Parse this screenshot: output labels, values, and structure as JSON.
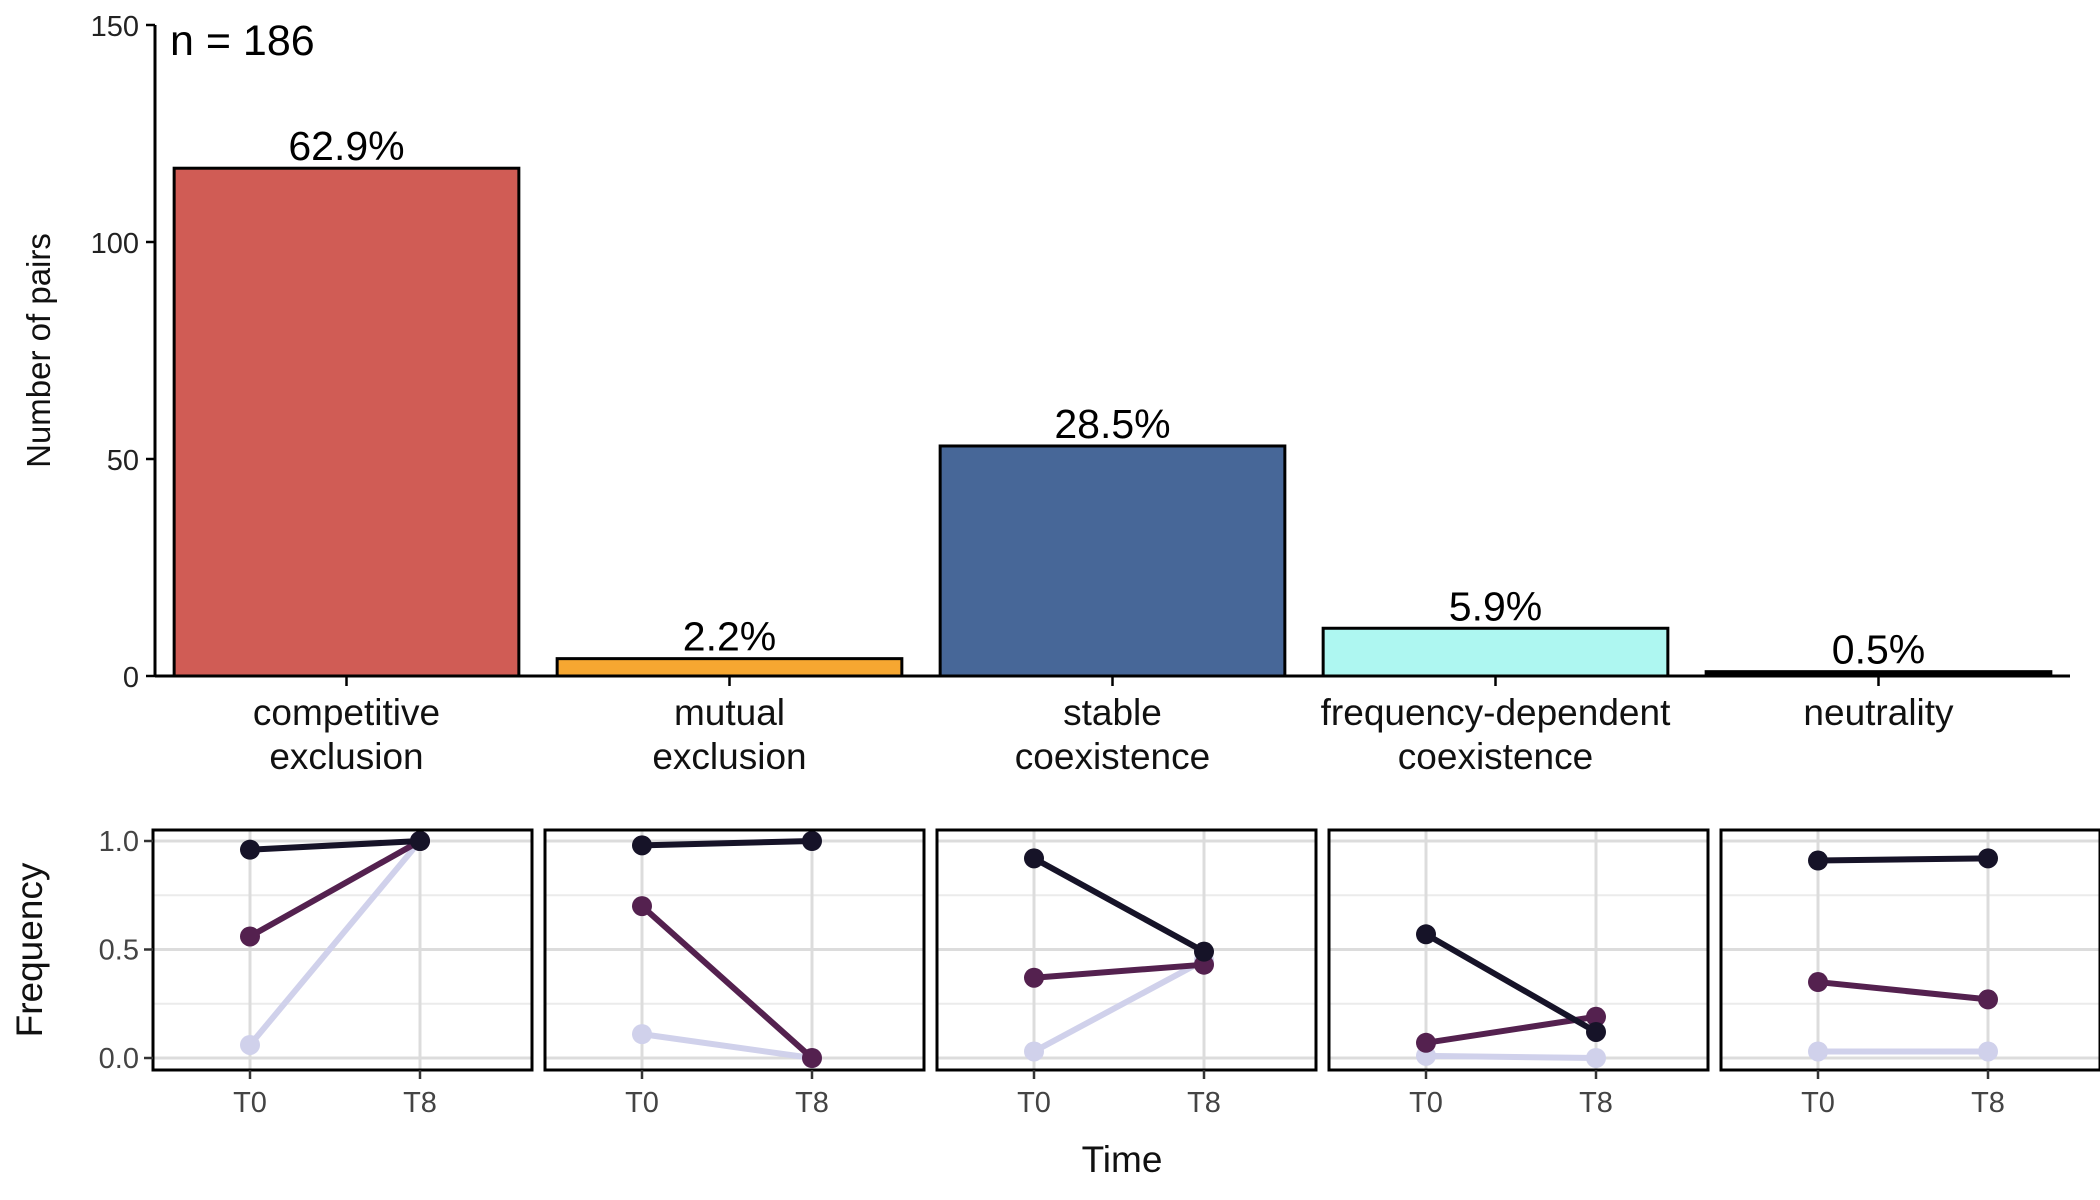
{
  "chart_data": [
    {
      "type": "bar",
      "annotation": "n = 186",
      "ylabel": "Number of pairs",
      "ylim": [
        0,
        150
      ],
      "yticks": [
        0,
        50,
        100,
        150
      ],
      "categories": [
        [
          "competitive",
          "exclusion"
        ],
        [
          "mutual",
          "exclusion"
        ],
        [
          "stable",
          "coexistence"
        ],
        [
          "frequency-dependent",
          "coexistence"
        ],
        [
          "neutrality"
        ]
      ],
      "values": [
        117,
        4,
        53,
        11,
        1
      ],
      "labels": [
        "62.9%",
        "2.2%",
        "28.5%",
        "5.9%",
        "0.5%"
      ],
      "colors": [
        "#D05C55",
        "#F6A731",
        "#476798",
        "#AEF7F1",
        "#000000"
      ]
    },
    {
      "type": "line",
      "ylabel": "Frequency",
      "xlabel": "Time",
      "x": [
        "T0",
        "T8"
      ],
      "ylim": [
        0,
        1
      ],
      "yticks": [
        "0.0",
        "0.5",
        "1.0"
      ],
      "series_colors": [
        "#D0D1EB",
        "#54214F",
        "#161328"
      ],
      "panels": [
        {
          "series": [
            {
              "values": [
                0.06,
                1.0
              ]
            },
            {
              "values": [
                0.56,
                1.0
              ]
            },
            {
              "values": [
                0.96,
                1.0
              ]
            }
          ]
        },
        {
          "series": [
            {
              "values": [
                0.11,
                0.0
              ]
            },
            {
              "values": [
                0.7,
                0.0
              ]
            },
            {
              "values": [
                0.98,
                1.0
              ]
            }
          ]
        },
        {
          "series": [
            {
              "values": [
                0.03,
                0.45
              ]
            },
            {
              "values": [
                0.37,
                0.43
              ]
            },
            {
              "values": [
                0.92,
                0.49
              ]
            }
          ]
        },
        {
          "series": [
            {
              "values": [
                0.01,
                0.0
              ]
            },
            {
              "values": [
                0.07,
                0.19
              ]
            },
            {
              "values": [
                0.57,
                0.12
              ]
            }
          ]
        },
        {
          "series": [
            {
              "values": [
                0.03,
                0.03
              ]
            },
            {
              "values": [
                0.35,
                0.27
              ]
            },
            {
              "values": [
                0.91,
                0.92
              ]
            }
          ]
        }
      ]
    }
  ]
}
